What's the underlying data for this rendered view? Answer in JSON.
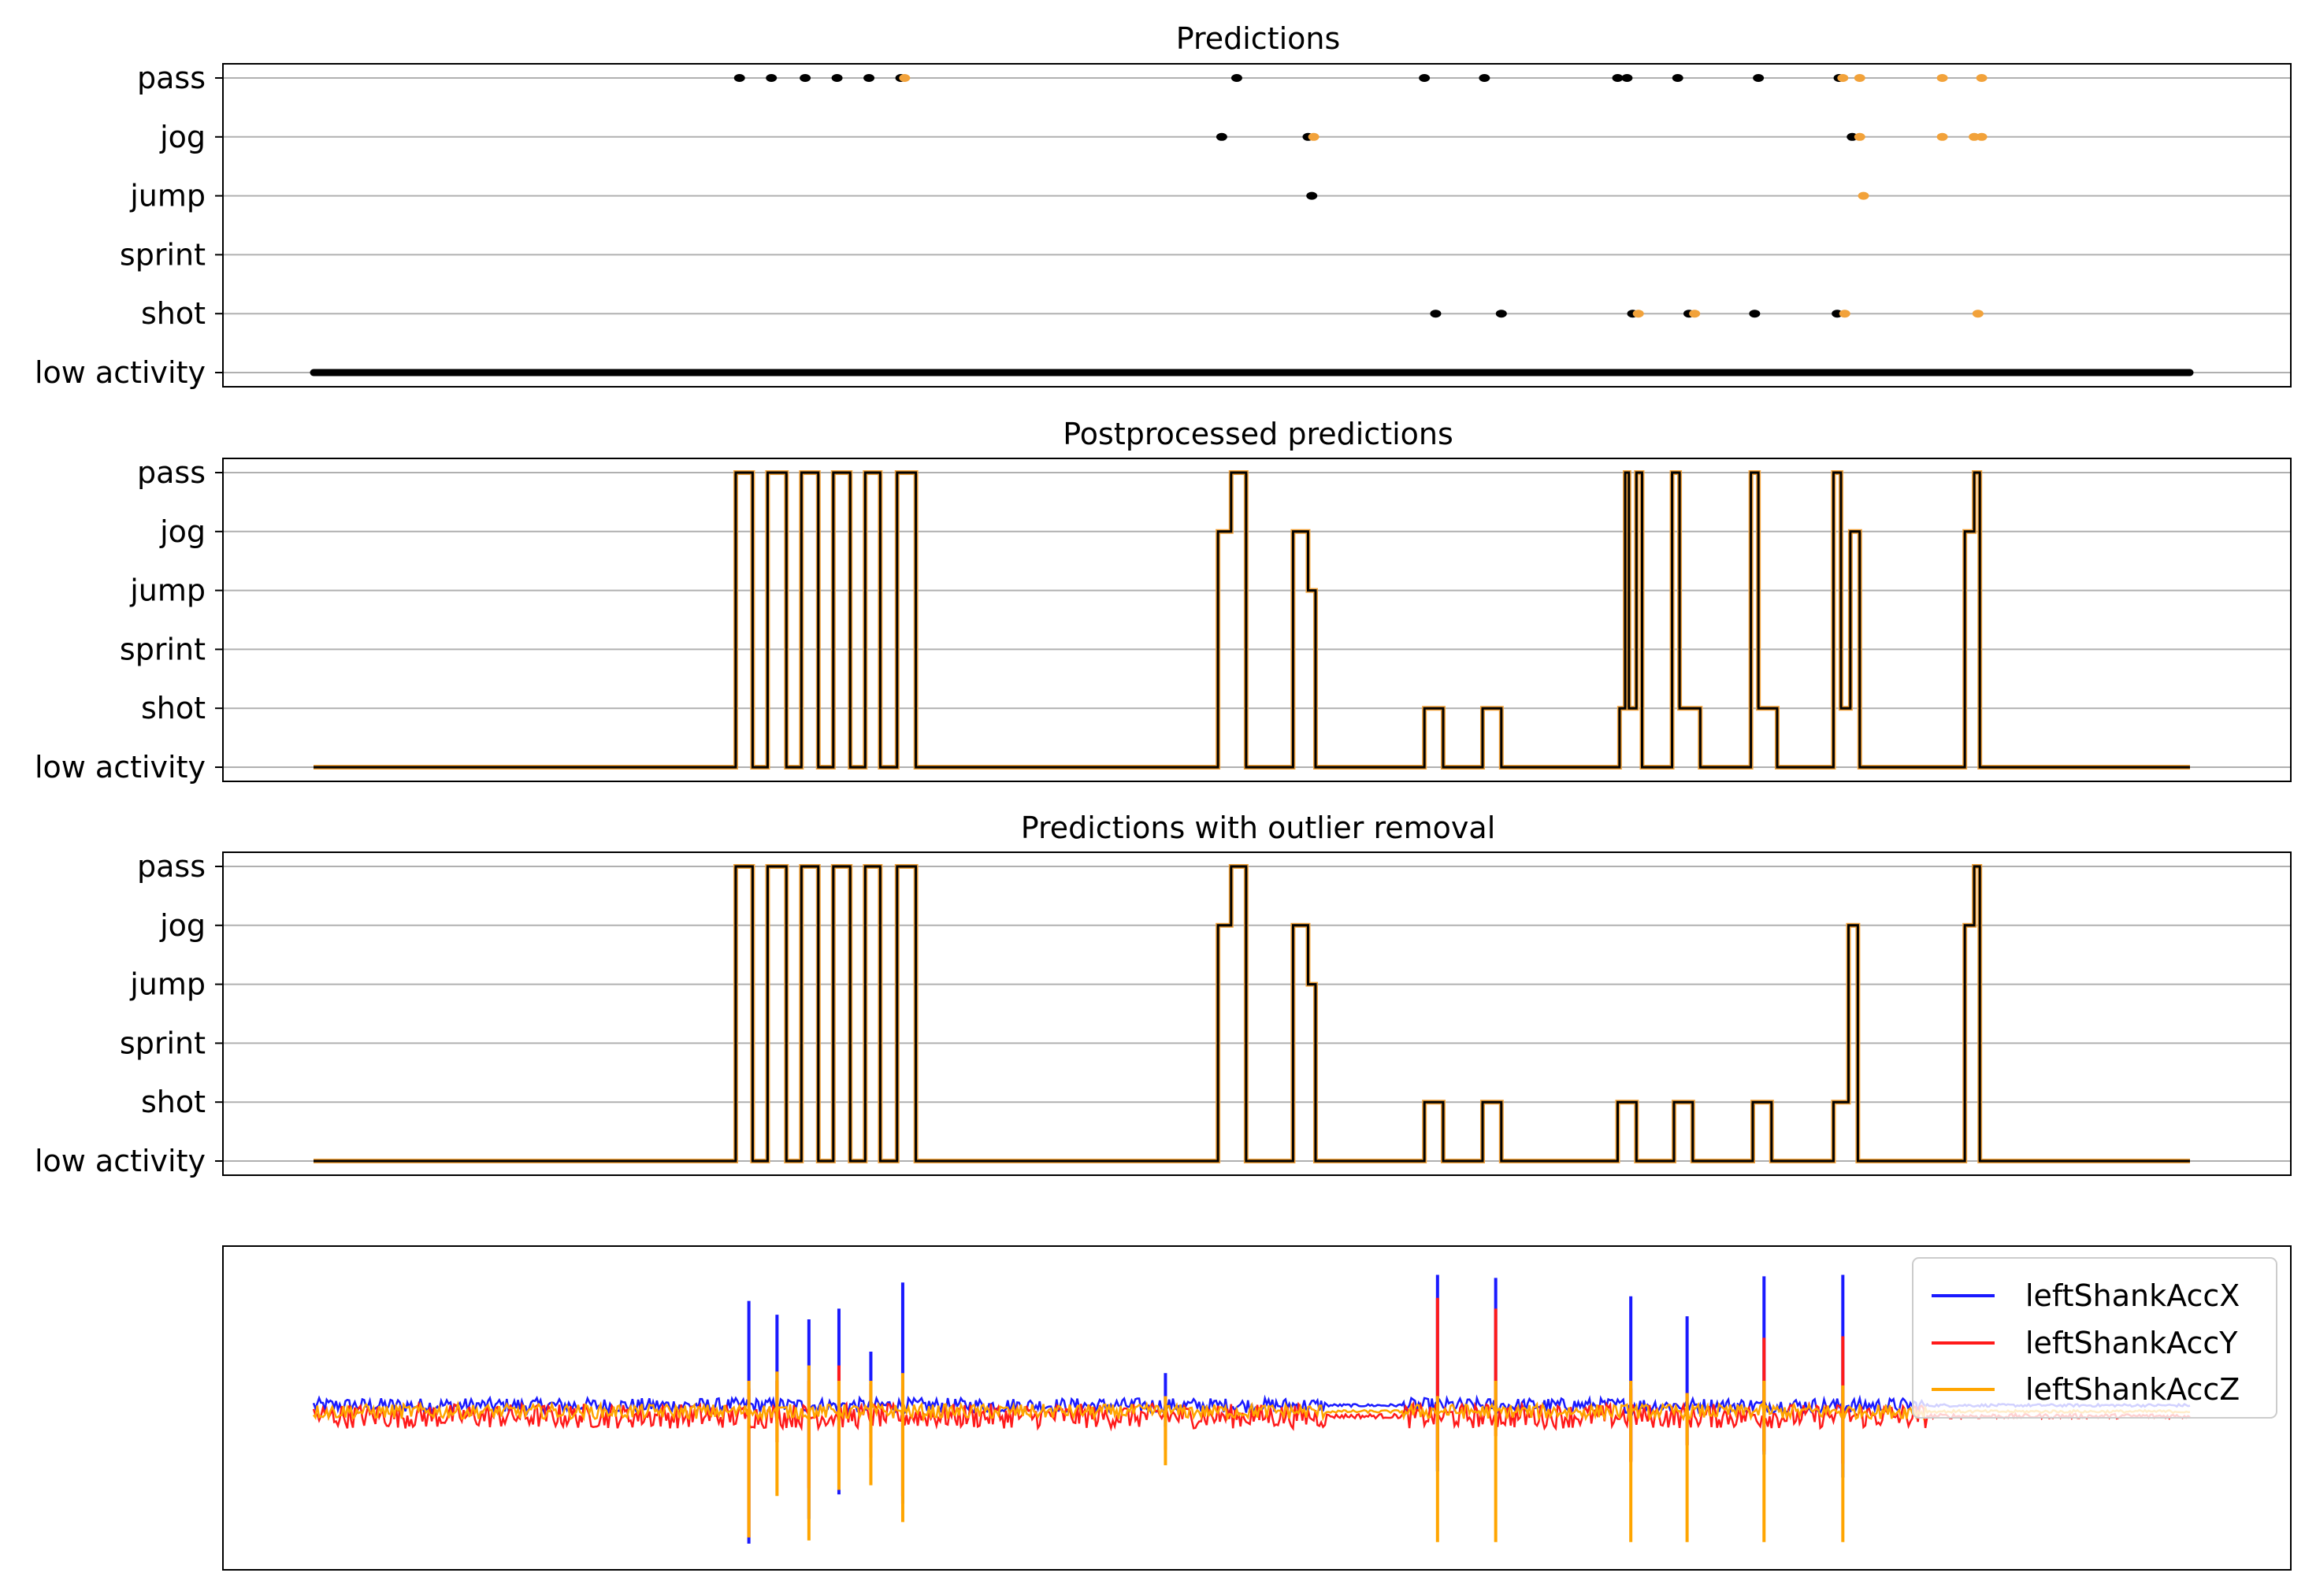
{
  "chart_data": [
    {
      "type": "scatter",
      "title": "Predictions",
      "xlabel": "",
      "ylabel": "",
      "categories": [
        "low activity",
        "shot",
        "sprint",
        "jump",
        "jog",
        "pass"
      ],
      "xlim": [
        0,
        1000
      ],
      "grid": true,
      "colors": [
        "#000000",
        "#f2a23a"
      ],
      "series": [
        {
          "color": "#000000",
          "points": [
            [
              0,
              0
            ],
            [
              40,
              0
            ],
            [
              80,
              0
            ],
            [
              120,
              0
            ],
            [
              160,
              0
            ],
            [
              200,
              0
            ],
            [
              240,
              0
            ],
            [
              280,
              0
            ],
            [
              320,
              0
            ],
            [
              360,
              0
            ],
            [
              400,
              0
            ],
            [
              440,
              0
            ],
            [
              480,
              0
            ],
            [
              520,
              0
            ],
            [
              560,
              0
            ],
            [
              600,
              0
            ],
            [
              640,
              0
            ],
            [
              680,
              0
            ],
            [
              720,
              0
            ],
            [
              760,
              0
            ],
            [
              800,
              0
            ],
            [
              840,
              0
            ],
            [
              880,
              0
            ],
            [
              920,
              0
            ],
            [
              960,
              0
            ],
            [
              1000,
              0
            ],
            [
              227,
              5
            ],
            [
              244,
              5
            ],
            [
              262,
              5
            ],
            [
              279,
              5
            ],
            [
              296,
              5
            ],
            [
              313,
              5
            ],
            [
              492,
              5
            ],
            [
              592,
              5
            ],
            [
              624,
              5
            ],
            [
              695,
              5
            ],
            [
              700,
              5
            ],
            [
              727,
              5
            ],
            [
              770,
              5
            ],
            [
              813,
              5
            ],
            [
              484,
              4
            ],
            [
              530,
              4
            ],
            [
              820,
              4
            ],
            [
              532,
              3
            ],
            [
              598,
              1
            ],
            [
              633,
              1
            ],
            [
              703,
              1
            ],
            [
              733,
              1
            ],
            [
              768,
              1
            ],
            [
              812,
              1
            ]
          ]
        },
        {
          "color": "#f2a23a",
          "points": [
            [
              315,
              5
            ],
            [
              815,
              5
            ],
            [
              824,
              5
            ],
            [
              868,
              5
            ],
            [
              889,
              5
            ],
            [
              533,
              4
            ],
            [
              824,
              4
            ],
            [
              868,
              4
            ],
            [
              885,
              4
            ],
            [
              889,
              4
            ],
            [
              826,
              3
            ],
            [
              706,
              1
            ],
            [
              736,
              1
            ],
            [
              816,
              1
            ],
            [
              887,
              1
            ]
          ]
        }
      ]
    },
    {
      "type": "line",
      "title": "Postprocessed predictions",
      "xlabel": "",
      "ylabel": "",
      "categories": [
        "low activity",
        "shot",
        "sprint",
        "jump",
        "jog",
        "pass"
      ],
      "xlim": [
        0,
        1000
      ],
      "grid": true,
      "series": [
        {
          "color": "#000000",
          "steps": [
            [
              0,
              0
            ],
            [
              225,
              5
            ],
            [
              234,
              0
            ],
            [
              242,
              5
            ],
            [
              252,
              0
            ],
            [
              260,
              5
            ],
            [
              269,
              0
            ],
            [
              277,
              5
            ],
            [
              286,
              0
            ],
            [
              294,
              5
            ],
            [
              302,
              0
            ],
            [
              311,
              5
            ],
            [
              321,
              0
            ],
            [
              482,
              4
            ],
            [
              489,
              5
            ],
            [
              497,
              0
            ],
            [
              522,
              4
            ],
            [
              530,
              3
            ],
            [
              534,
              0
            ],
            [
              592,
              1
            ],
            [
              602,
              0
            ],
            [
              623,
              1
            ],
            [
              633,
              0
            ],
            [
              696,
              1
            ],
            [
              699,
              5
            ],
            [
              701,
              1
            ],
            [
              705,
              5
            ],
            [
              708,
              0
            ],
            [
              724,
              5
            ],
            [
              728,
              1
            ],
            [
              739,
              0
            ],
            [
              766,
              5
            ],
            [
              770,
              1
            ],
            [
              780,
              0
            ],
            [
              810,
              5
            ],
            [
              814,
              1
            ],
            [
              819,
              4
            ],
            [
              824,
              0
            ],
            [
              880,
              4
            ],
            [
              885,
              5
            ],
            [
              888,
              0
            ],
            [
              1000,
              0
            ]
          ]
        }
      ]
    },
    {
      "type": "line",
      "title": "Predictions with outlier removal",
      "xlabel": "",
      "ylabel": "",
      "categories": [
        "low activity",
        "shot",
        "sprint",
        "jump",
        "jog",
        "pass"
      ],
      "xlim": [
        0,
        1000
      ],
      "grid": true,
      "series": [
        {
          "color": "#000000",
          "steps": [
            [
              0,
              0
            ],
            [
              225,
              5
            ],
            [
              234,
              0
            ],
            [
              242,
              5
            ],
            [
              252,
              0
            ],
            [
              260,
              5
            ],
            [
              269,
              0
            ],
            [
              277,
              5
            ],
            [
              286,
              0
            ],
            [
              294,
              5
            ],
            [
              302,
              0
            ],
            [
              311,
              5
            ],
            [
              321,
              0
            ],
            [
              482,
              4
            ],
            [
              489,
              5
            ],
            [
              497,
              0
            ],
            [
              522,
              4
            ],
            [
              530,
              3
            ],
            [
              534,
              0
            ],
            [
              592,
              1
            ],
            [
              602,
              0
            ],
            [
              623,
              1
            ],
            [
              633,
              0
            ],
            [
              695,
              1
            ],
            [
              705,
              0
            ],
            [
              725,
              1
            ],
            [
              735,
              0
            ],
            [
              767,
              1
            ],
            [
              777,
              0
            ],
            [
              810,
              1
            ],
            [
              818,
              4
            ],
            [
              823,
              0
            ],
            [
              880,
              4
            ],
            [
              885,
              5
            ],
            [
              888,
              0
            ],
            [
              1000,
              0
            ]
          ]
        }
      ]
    },
    {
      "type": "line",
      "title": "",
      "xlabel": "",
      "ylabel": "",
      "xlim": [
        0,
        1000
      ],
      "ylim": [
        -1,
        1
      ],
      "grid": false,
      "legend_position": "top-right",
      "series": [
        {
          "name": "leftShankAccX",
          "color": "#1a1aff",
          "baseline": 0.04,
          "noise": 0.03,
          "spikes": [
            [
              232,
              0.72,
              -0.86
            ],
            [
              247,
              0.63,
              -0.08
            ],
            [
              264,
              0.6,
              -0.7
            ],
            [
              280,
              0.67,
              -0.54
            ],
            [
              297,
              0.39,
              -0.14
            ],
            [
              314,
              0.84,
              -0.6
            ],
            [
              454,
              0.25,
              -0.1
            ],
            [
              599,
              0.89,
              -0.39
            ],
            [
              630,
              0.87,
              -0.12
            ],
            [
              702,
              0.75,
              -0.32
            ],
            [
              732,
              0.62,
              -0.22
            ],
            [
              773,
              0.88,
              -0.28
            ],
            [
              815,
              0.89,
              -0.43
            ]
          ]
        },
        {
          "name": "leftShankAccY",
          "color": "#ff1a1a",
          "baseline": -0.03,
          "noise": 0.05,
          "spikes": [
            [
              232,
              0.15,
              -0.82
            ],
            [
              247,
              0.2,
              -0.2
            ],
            [
              264,
              0.2,
              -0.5
            ],
            [
              280,
              0.3,
              -0.4
            ],
            [
              297,
              0.18,
              -0.3
            ],
            [
              314,
              0.15,
              -0.55
            ],
            [
              454,
              0.1,
              -0.25
            ],
            [
              599,
              0.74,
              -0.32
            ],
            [
              630,
              0.67,
              -0.16
            ],
            [
              702,
              0.15,
              -0.33
            ],
            [
              732,
              0.12,
              -0.22
            ],
            [
              773,
              0.48,
              -0.26
            ],
            [
              815,
              0.49,
              -0.34
            ]
          ]
        },
        {
          "name": "leftShankAccZ",
          "color": "#ffa500",
          "baseline": 0.0,
          "noise": 0.03,
          "spikes": [
            [
              232,
              0.2,
              -0.82
            ],
            [
              247,
              0.26,
              -0.55
            ],
            [
              264,
              0.3,
              -0.84
            ],
            [
              280,
              0.2,
              -0.51
            ],
            [
              297,
              0.2,
              -0.48
            ],
            [
              314,
              0.25,
              -0.72
            ],
            [
              454,
              0.1,
              -0.35
            ],
            [
              599,
              0.1,
              -0.85
            ],
            [
              630,
              0.2,
              -0.85
            ],
            [
              702,
              0.2,
              -0.85
            ],
            [
              732,
              0.12,
              -0.85
            ],
            [
              773,
              0.2,
              -0.85
            ],
            [
              815,
              0.17,
              -0.85
            ]
          ]
        }
      ]
    }
  ]
}
